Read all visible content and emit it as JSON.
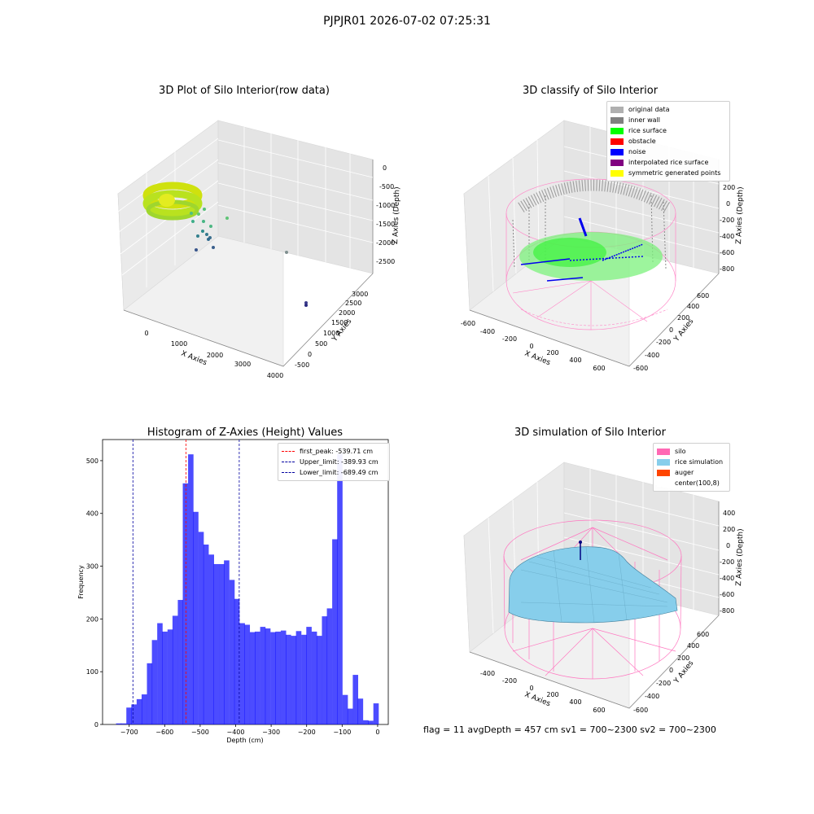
{
  "suptitle": "PJPJR01 2026-07-02 07:25:31",
  "footer": "flag = 11   avgDepth = 457 cm  sv1 = 700~2300  sv2 = 700~2300",
  "panels": {
    "raw": {
      "title": "3D Plot of Silo Interior(row data)",
      "xlabel": "X Axies",
      "ylabel": "Y Axies",
      "zlabel": "Z Axies (Depth)",
      "xticks": [
        "0",
        "1000",
        "2000",
        "3000",
        "4000"
      ],
      "yticks": [
        "-500",
        "0",
        "500",
        "1000",
        "1500",
        "2000",
        "2500",
        "3000"
      ],
      "zticks": [
        "0",
        "-500",
        "-1000",
        "-1500",
        "-2000",
        "-2500"
      ]
    },
    "classify": {
      "title": "3D classify of Silo Interior",
      "xlabel": "X Axies",
      "ylabel": "Y Axies",
      "zlabel": "Z Axies (Depth)",
      "xticks": [
        "-600",
        "-400",
        "-200",
        "0",
        "200",
        "400",
        "600"
      ],
      "yticks": [
        "-600",
        "-400",
        "-200",
        "0",
        "200",
        "400",
        "600"
      ],
      "zticks": [
        "200",
        "0",
        "-200",
        "-400",
        "-600",
        "-800"
      ],
      "legend": [
        {
          "label": "original data",
          "color": "#b0b0b0"
        },
        {
          "label": "inner wall",
          "color": "#808080"
        },
        {
          "label": "rice surface",
          "color": "#00ff00"
        },
        {
          "label": "obstacle",
          "color": "#ff0000"
        },
        {
          "label": "noise",
          "color": "#0000ff"
        },
        {
          "label": "interpolated rice surface",
          "color": "#800080"
        },
        {
          "label": "symmetric generated points",
          "color": "#ffff00"
        }
      ]
    },
    "simulation": {
      "title": "3D simulation of Silo Interior",
      "xlabel": "X Axies",
      "ylabel": "Y Axies",
      "zlabel": "Z Axies (Depth)",
      "xticks": [
        "-400",
        "-200",
        "0",
        "200",
        "400",
        "600"
      ],
      "yticks": [
        "-600",
        "-400",
        "-200",
        "0",
        "200",
        "400",
        "600"
      ],
      "zticks": [
        "400",
        "200",
        "0",
        "-200",
        "-400",
        "-600",
        "-800"
      ],
      "legend": [
        {
          "label": "silo",
          "color": "#ff69b4"
        },
        {
          "label": "rice simulation",
          "color": "#87ceeb"
        },
        {
          "label": "auger",
          "color": "#ff4500"
        },
        {
          "label": "center(100,8)",
          "color": "#ffffff"
        }
      ]
    }
  },
  "chart_data": {
    "type": "bar",
    "title": "Histogram of Z-Axies (Height) Values",
    "xlabel": "Depth (cm)",
    "ylabel": "Frequency",
    "xlim": [
      -775,
      30
    ],
    "ylim": [
      0,
      540
    ],
    "bar_color": "#0000ff",
    "bin_width": 14.5,
    "bin_starts": [
      -737,
      -723,
      -708,
      -694,
      -679,
      -665,
      -650,
      -636,
      -621,
      -607,
      -592,
      -578,
      -563,
      -549,
      -534,
      -520,
      -505,
      -491,
      -476,
      -462,
      -447,
      -433,
      -418,
      -404,
      -389,
      -375,
      -360,
      -346,
      -331,
      -317,
      -302,
      -288,
      -273,
      -259,
      -244,
      -230,
      -215,
      -201,
      -186,
      -172,
      -157,
      -143,
      -128,
      -114,
      -99,
      -85,
      -70,
      -56,
      -41,
      -27,
      -12
    ],
    "values": [
      2,
      2,
      32,
      38,
      48,
      57,
      116,
      160,
      192,
      176,
      180,
      206,
      236,
      457,
      512,
      403,
      365,
      341,
      322,
      304,
      304,
      311,
      274,
      238,
      192,
      189,
      175,
      176,
      185,
      182,
      175,
      176,
      178,
      170,
      168,
      177,
      170,
      185,
      176,
      168,
      205,
      220,
      351,
      513,
      56,
      30,
      94,
      49,
      8,
      7,
      40
    ],
    "xticks": [
      -700,
      -600,
      -500,
      -400,
      -300,
      -200,
      -100,
      0
    ],
    "yticks": [
      0,
      100,
      200,
      300,
      400,
      500
    ],
    "vlines": [
      {
        "x": -539.71,
        "color": "#ff0000",
        "label": "first_peak: -539.71 cm"
      },
      {
        "x": -389.93,
        "color": "#0000a0",
        "label": "Upper_limit: -389.93 cm"
      },
      {
        "x": -689.49,
        "color": "#0000a0",
        "label": "Lower_limit: -689.49 cm"
      }
    ]
  }
}
